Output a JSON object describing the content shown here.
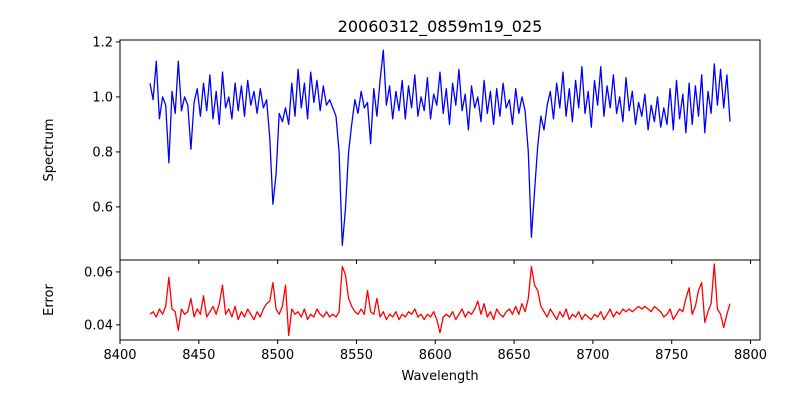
{
  "chart_data": [
    {
      "type": "line",
      "title": "20060312_0859m19_025",
      "xlabel": "",
      "ylabel": "Spectrum",
      "xlim": [
        8400,
        8806
      ],
      "ylim": [
        0.407,
        1.207
      ],
      "xticks": [
        8400,
        8450,
        8500,
        8550,
        8600,
        8650,
        8700,
        8750,
        8800
      ],
      "yticks": [
        0.6,
        0.8,
        1.0,
        1.2
      ],
      "ytick_labels": [
        "0.6",
        "0.8",
        "1.0",
        "1.2"
      ],
      "grid": false,
      "color": "#0000ff",
      "x_start": 8419,
      "x_step": 2,
      "values": [
        1.05,
        0.99,
        1.13,
        0.92,
        1.0,
        0.97,
        0.76,
        1.02,
        0.94,
        1.13,
        0.95,
        1.0,
        0.97,
        0.81,
        0.98,
        1.03,
        0.93,
        1.05,
        0.95,
        1.08,
        0.92,
        1.02,
        0.9,
        1.09,
        0.96,
        1.0,
        0.92,
        1.05,
        0.95,
        1.04,
        0.93,
        1.06,
        0.97,
        1.02,
        0.94,
        1.03,
        0.96,
        0.99,
        0.85,
        0.61,
        0.72,
        0.94,
        0.91,
        0.96,
        0.9,
        1.05,
        0.93,
        1.1,
        0.96,
        1.05,
        0.92,
        1.09,
        0.98,
        1.06,
        0.95,
        1.04,
        0.97,
        0.99,
        0.96,
        0.93,
        0.8,
        0.46,
        0.59,
        0.8,
        0.9,
        0.99,
        0.94,
        1.02,
        0.96,
        0.98,
        0.83,
        1.03,
        0.93,
        1.06,
        1.17,
        0.97,
        1.04,
        0.92,
        1.02,
        0.95,
        1.06,
        0.92,
        1.04,
        0.96,
        1.08,
        0.93,
        1.0,
        0.95,
        1.07,
        0.92,
        1.01,
        0.97,
        1.09,
        0.94,
        1.03,
        0.9,
        1.05,
        0.97,
        1.1,
        0.95,
        1.01,
        0.88,
        1.04,
        0.96,
        1.0,
        0.91,
        1.06,
        0.94,
        1.02,
        0.9,
        1.03,
        0.93,
        1.05,
        0.96,
        0.99,
        0.9,
        1.03,
        0.94,
        1.0,
        0.95,
        0.8,
        0.49,
        0.66,
        0.82,
        0.93,
        0.88,
        0.97,
        1.02,
        0.92,
        1.05,
        0.96,
        1.09,
        0.93,
        1.03,
        0.91,
        1.06,
        0.96,
        1.11,
        0.94,
        1.02,
        0.89,
        1.06,
        0.97,
        1.11,
        0.93,
        1.04,
        0.96,
        1.08,
        0.94,
        1.0,
        0.91,
        1.07,
        0.95,
        1.02,
        0.9,
        0.98,
        0.93,
        1.01,
        0.88,
        0.97,
        0.91,
        1.0,
        0.89,
        0.96,
        0.9,
        1.03,
        0.88,
        1.06,
        0.92,
        1.01,
        0.87,
        1.05,
        0.9,
        1.04,
        0.93,
        1.08,
        0.87,
        1.02,
        0.94,
        1.12,
        0.97,
        1.1,
        0.96,
        1.08,
        0.91
      ]
    },
    {
      "type": "line",
      "xlabel": "Wavelength",
      "ylabel": "Error",
      "xlim": [
        8400,
        8806
      ],
      "ylim": [
        0.0343,
        0.0645
      ],
      "xticks": [
        8400,
        8450,
        8500,
        8550,
        8600,
        8650,
        8700,
        8750,
        8800
      ],
      "xtick_labels": [
        "8400",
        "8450",
        "8500",
        "8550",
        "8600",
        "8650",
        "8700",
        "8750",
        "8800"
      ],
      "yticks": [
        0.04,
        0.06
      ],
      "ytick_labels": [
        "0.04",
        "0.06"
      ],
      "grid": false,
      "color": "#ff0000",
      "x_start": 8419,
      "x_step": 2,
      "values": [
        0.044,
        0.045,
        0.043,
        0.046,
        0.044,
        0.047,
        0.058,
        0.046,
        0.045,
        0.038,
        0.046,
        0.044,
        0.045,
        0.05,
        0.043,
        0.046,
        0.044,
        0.051,
        0.043,
        0.045,
        0.047,
        0.044,
        0.048,
        0.055,
        0.044,
        0.046,
        0.043,
        0.047,
        0.042,
        0.045,
        0.043,
        0.046,
        0.044,
        0.042,
        0.045,
        0.043,
        0.046,
        0.048,
        0.049,
        0.056,
        0.046,
        0.044,
        0.047,
        0.055,
        0.036,
        0.046,
        0.044,
        0.045,
        0.043,
        0.046,
        0.042,
        0.044,
        0.043,
        0.046,
        0.044,
        0.043,
        0.045,
        0.043,
        0.044,
        0.043,
        0.045,
        0.062,
        0.059,
        0.05,
        0.047,
        0.045,
        0.044,
        0.046,
        0.044,
        0.053,
        0.045,
        0.044,
        0.05,
        0.043,
        0.045,
        0.042,
        0.044,
        0.043,
        0.045,
        0.042,
        0.044,
        0.043,
        0.045,
        0.044,
        0.046,
        0.043,
        0.044,
        0.042,
        0.044,
        0.043,
        0.045,
        0.042,
        0.037,
        0.043,
        0.044,
        0.043,
        0.045,
        0.042,
        0.044,
        0.046,
        0.043,
        0.045,
        0.044,
        0.046,
        0.049,
        0.044,
        0.048,
        0.043,
        0.045,
        0.042,
        0.046,
        0.044,
        0.043,
        0.045,
        0.046,
        0.044,
        0.047,
        0.044,
        0.048,
        0.045,
        0.05,
        0.062,
        0.055,
        0.053,
        0.047,
        0.045,
        0.043,
        0.046,
        0.044,
        0.042,
        0.045,
        0.043,
        0.046,
        0.042,
        0.044,
        0.043,
        0.045,
        0.042,
        0.044,
        0.043,
        0.042,
        0.044,
        0.043,
        0.045,
        0.042,
        0.044,
        0.046,
        0.043,
        0.045,
        0.044,
        0.046,
        0.045,
        0.046,
        0.045,
        0.046,
        0.047,
        0.046,
        0.047,
        0.046,
        0.045,
        0.047,
        0.046,
        0.045,
        0.043,
        0.044,
        0.046,
        0.042,
        0.044,
        0.046,
        0.045,
        0.05,
        0.054,
        0.044,
        0.047,
        0.053,
        0.056,
        0.041,
        0.045,
        0.048,
        0.063,
        0.046,
        0.044,
        0.039,
        0.044,
        0.048
      ]
    }
  ]
}
